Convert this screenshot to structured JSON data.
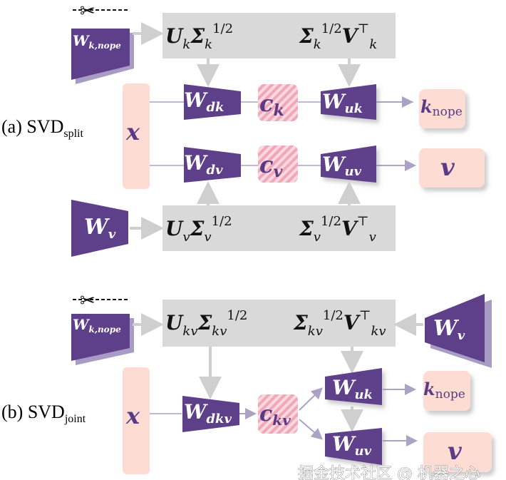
{
  "colors": {
    "matrix": "#5e3f8a",
    "input_output": "#fcdcd3",
    "svd_box": "#d9d9d9",
    "arrow": "#cfcfcf",
    "flow_arrow": "#aaa3c4",
    "latent_hatch": "#f2a9bd"
  },
  "icons": {
    "cut": "scissors-icon"
  },
  "split": {
    "caption": "(a) SVD",
    "caption_sub": "split",
    "w_knope": {
      "main": "W",
      "sub": "k,nope"
    },
    "top_left": {
      "u": "U",
      "u_sub": "k",
      "sigma": "Σ",
      "sigma_sub": "k",
      "sigma_sup": "1/2"
    },
    "top_right": {
      "sigma": "Σ",
      "sigma_sub": "k",
      "sigma_sup": "1/2",
      "v": "V",
      "v_sub": "k",
      "v_sup": "⊤"
    },
    "x": "x",
    "w_dk": {
      "main": "W",
      "sub": "dk"
    },
    "c_k": {
      "main": "c",
      "sub": "k"
    },
    "w_uk": {
      "main": "W",
      "sub": "uk"
    },
    "k_nope": {
      "main": "k",
      "sub": "nope"
    },
    "w_dv": {
      "main": "W",
      "sub": "dv"
    },
    "c_v": {
      "main": "c",
      "sub": "v"
    },
    "w_uv": {
      "main": "W",
      "sub": "uv"
    },
    "v": "v",
    "w_v": {
      "main": "W",
      "sub": "v"
    },
    "bottom_left": {
      "u": "U",
      "u_sub": "v",
      "sigma": "Σ",
      "sigma_sub": "v",
      "sigma_sup": "1/2"
    },
    "bottom_right": {
      "sigma": "Σ",
      "sigma_sub": "v",
      "sigma_sup": "1/2",
      "v": "V",
      "v_sub": "v",
      "v_sup": "⊤"
    }
  },
  "joint": {
    "caption": "(b) SVD",
    "caption_sub": "joint",
    "w_knope": {
      "main": "W",
      "sub": "k,nope"
    },
    "top_left": {
      "u": "U",
      "u_sub": "kv",
      "sigma": "Σ",
      "sigma_sub": "kv",
      "sigma_sup": "1/2"
    },
    "top_right": {
      "sigma": "Σ",
      "sigma_sub": "kv",
      "sigma_sup": "1/2",
      "v": "V",
      "v_sub": "kv",
      "v_sup": "⊤"
    },
    "w_v": {
      "main": "W",
      "sub": "v"
    },
    "x": "x",
    "w_dkv": {
      "main": "W",
      "sub": "dkv"
    },
    "c_kv": {
      "main": "c",
      "sub": "kv"
    },
    "w_uk": {
      "main": "W",
      "sub": "uk"
    },
    "k_nope": {
      "main": "k",
      "sub": "nope"
    },
    "w_uv": {
      "main": "W",
      "sub": "uv"
    },
    "v": "v"
  },
  "watermark": "掘金技术社区 @ 机器之心"
}
